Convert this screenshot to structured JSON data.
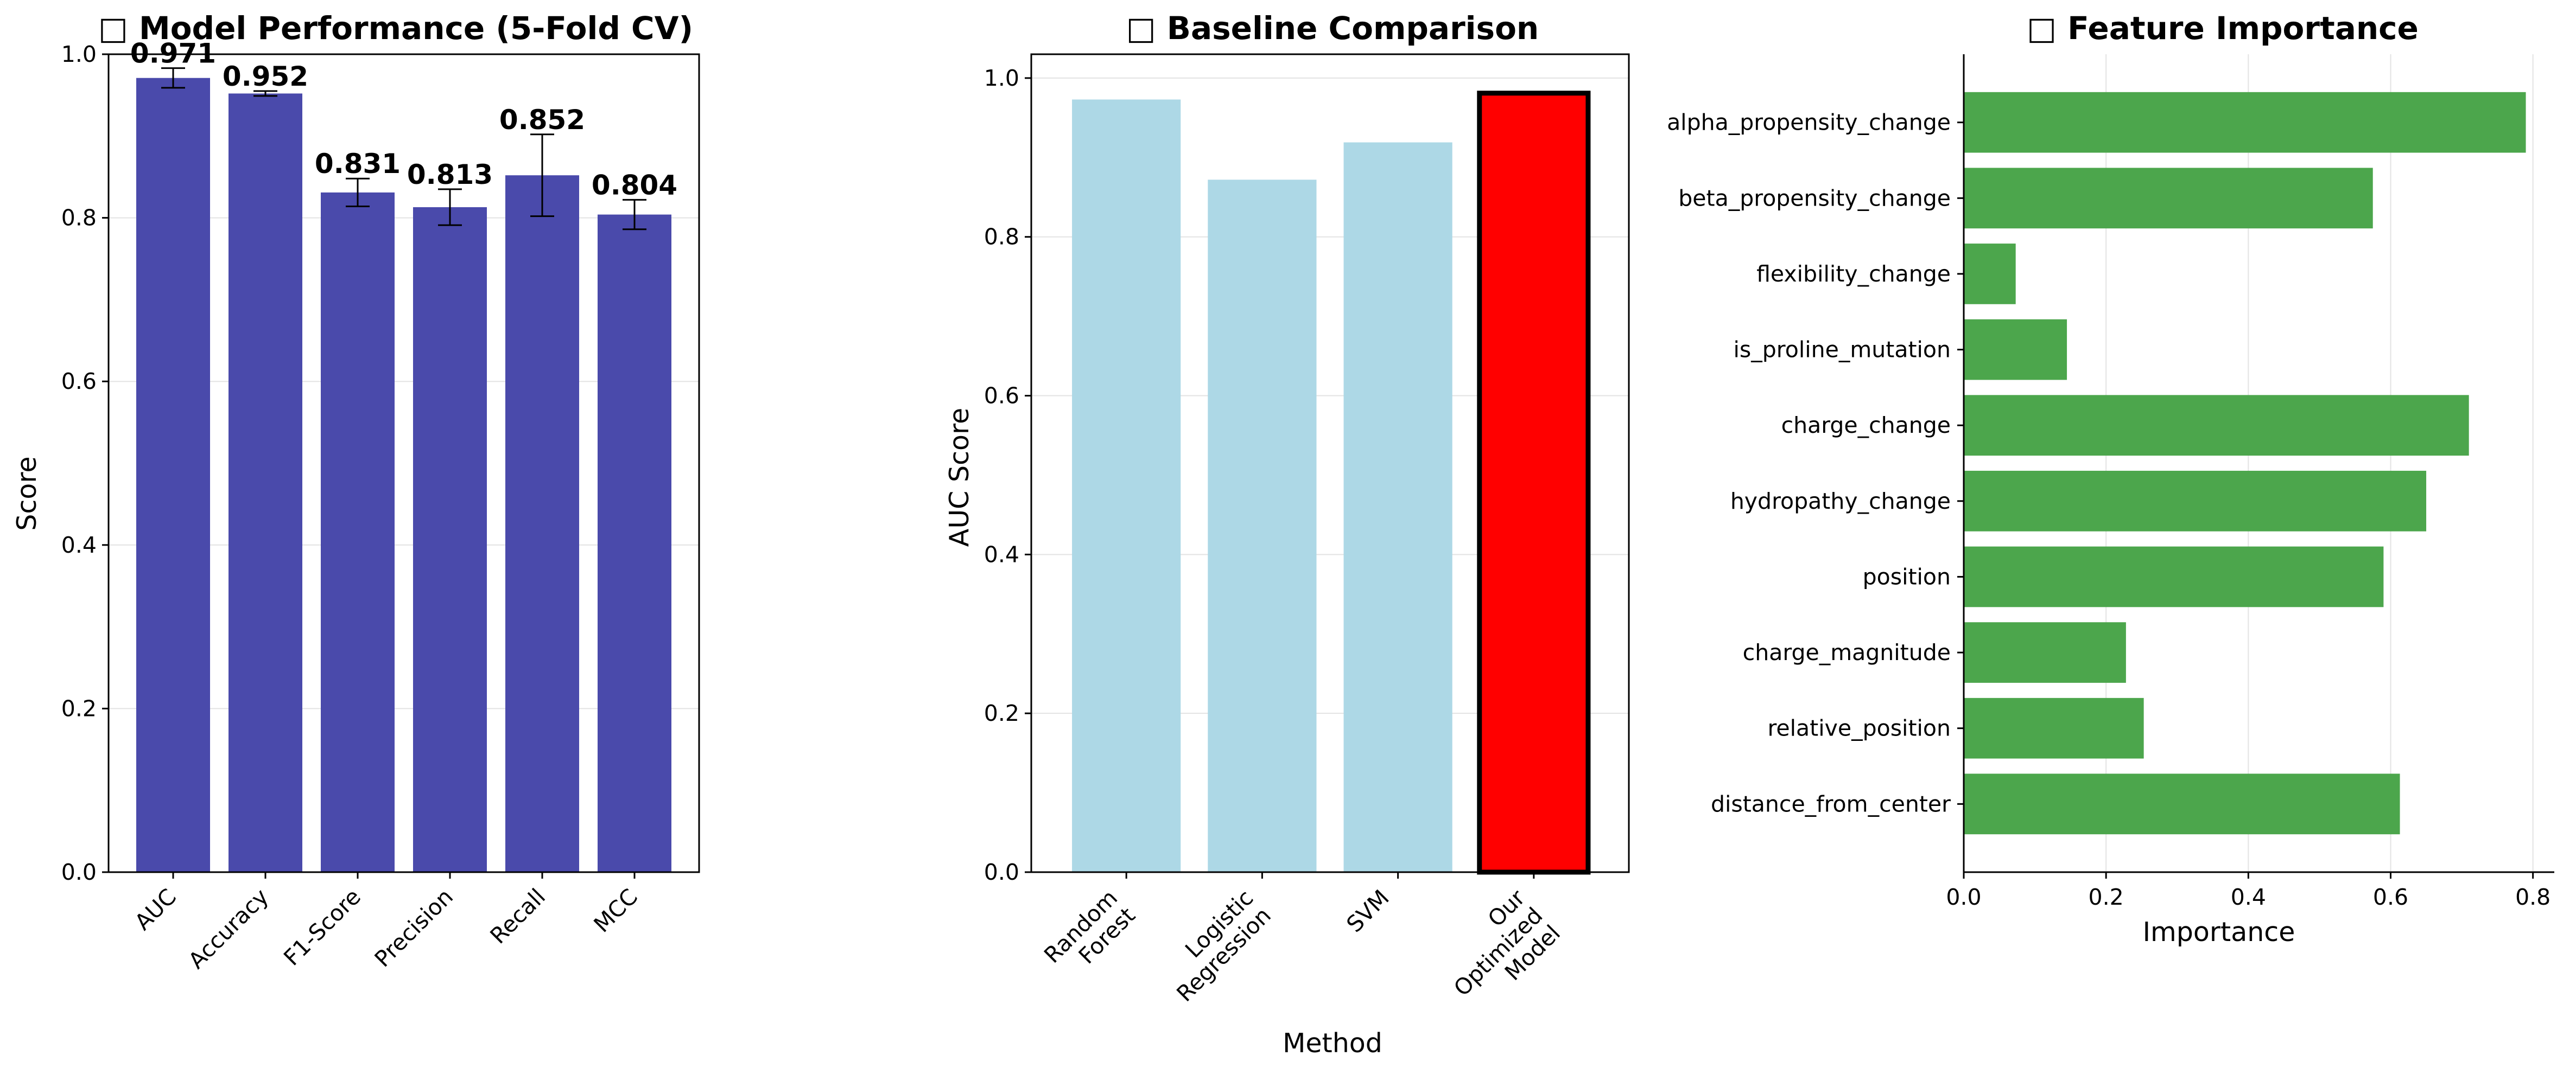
{
  "chart_data": [
    {
      "type": "bar",
      "title": "□ Model Performance (5-Fold CV)",
      "xlabel": "",
      "ylabel": "Score",
      "ylim": [
        0,
        1.0
      ],
      "yticks": [
        "0.0",
        "0.2",
        "0.4",
        "0.6",
        "0.8",
        "1.0"
      ],
      "grid": true,
      "categories": [
        "AUC",
        "Accuracy",
        "F1-Score",
        "Precision",
        "Recall",
        "MCC"
      ],
      "values": [
        0.971,
        0.952,
        0.831,
        0.813,
        0.852,
        0.804
      ],
      "errors": [
        0.012,
        0.003,
        0.017,
        0.022,
        0.05,
        0.018
      ],
      "value_labels": [
        "0.971",
        "0.952",
        "0.831",
        "0.813",
        "0.852",
        "0.804"
      ],
      "colors": {
        "bar": "#4a4aab"
      }
    },
    {
      "type": "bar",
      "title": "□ Baseline Comparison",
      "xlabel": "Method",
      "ylabel": "AUC Score",
      "ylim": [
        0,
        1.03
      ],
      "yticks": [
        "0.0",
        "0.2",
        "0.4",
        "0.6",
        "0.8",
        "1.0"
      ],
      "grid": true,
      "categories": [
        [
          "Random",
          "Forest"
        ],
        [
          "Logistic",
          "Regression"
        ],
        [
          "SVM"
        ],
        [
          "Our",
          "Optimized",
          "Model"
        ]
      ],
      "values": [
        0.973,
        0.872,
        0.919,
        0.981
      ],
      "colors": {
        "baseline": "#add8e6",
        "highlight": "#ff0000",
        "highlight_edge": "#000000"
      }
    },
    {
      "type": "bar",
      "orientation": "horizontal",
      "title": "□ Feature Importance",
      "xlabel": "Importance",
      "ylabel": "",
      "xlim": [
        0,
        0.83
      ],
      "xticks": [
        "0.0",
        "0.2",
        "0.4",
        "0.6",
        "0.8"
      ],
      "grid": true,
      "categories": [
        "alpha_propensity_change",
        "beta_propensity_change",
        "flexibility_change",
        "is_proline_mutation",
        "charge_change",
        "hydropathy_change",
        "position",
        "charge_magnitude",
        "relative_position",
        "distance_from_center"
      ],
      "values": [
        0.79,
        0.575,
        0.073,
        0.145,
        0.71,
        0.65,
        0.59,
        0.228,
        0.253,
        0.613
      ],
      "colors": {
        "bar": "#4ca64c"
      }
    }
  ]
}
